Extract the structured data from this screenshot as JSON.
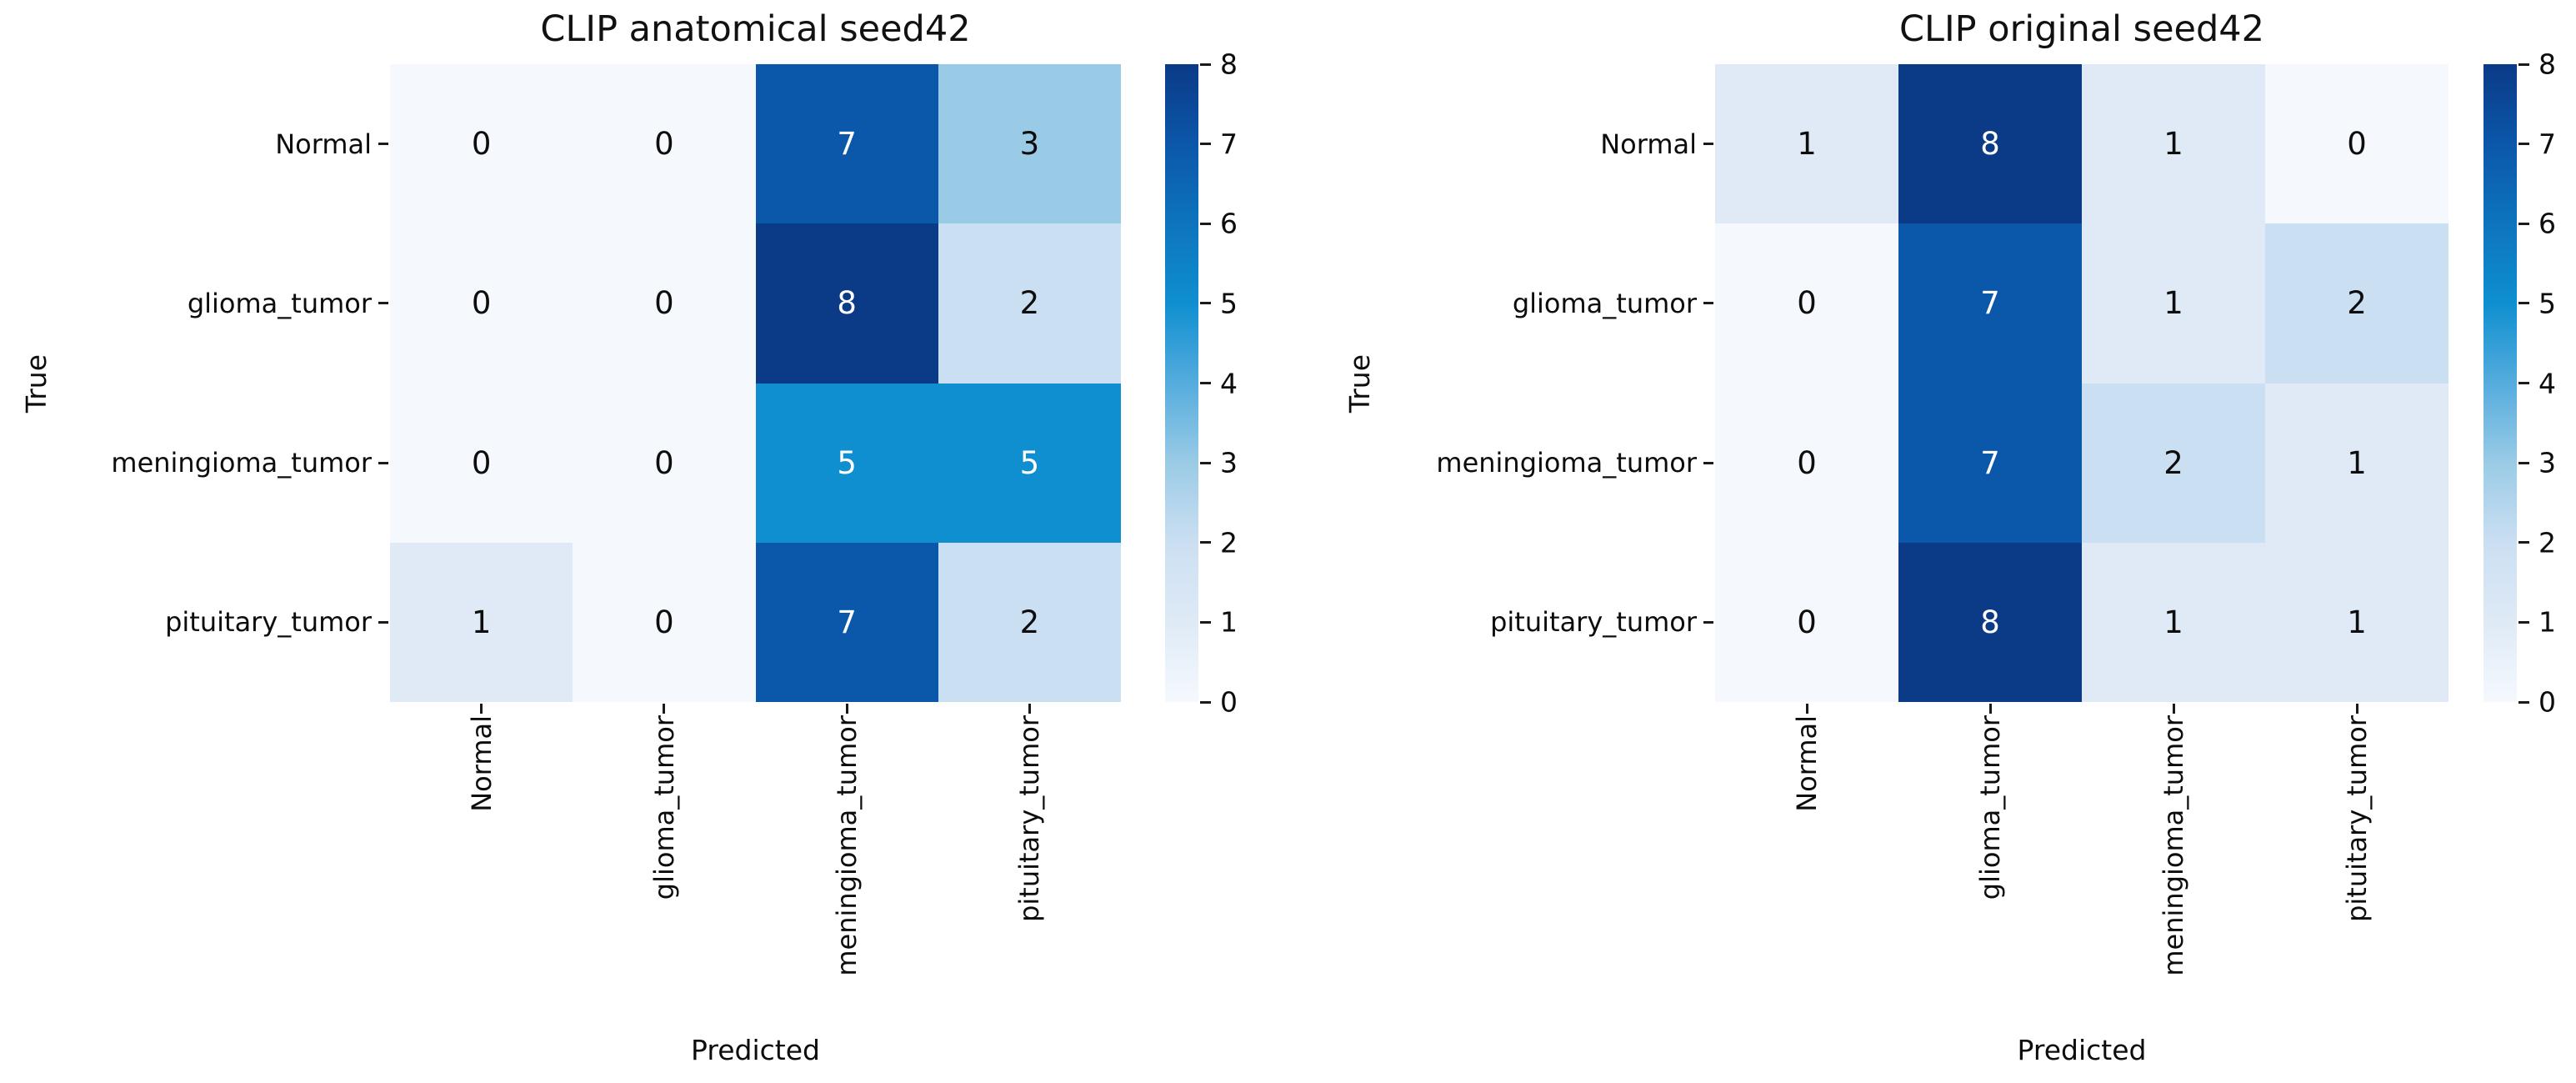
{
  "figure": {
    "background": "#ffffff"
  },
  "chart_data": [
    {
      "type": "heatmap",
      "title": "CLIP anatomical seed42",
      "xlabel": "Predicted",
      "ylabel": "True",
      "x_categories": [
        "Normal",
        "glioma_tumor",
        "meningioma_tumor",
        "pituitary_tumor"
      ],
      "y_categories": [
        "Normal",
        "glioma_tumor",
        "meningioma_tumor",
        "pituitary_tumor"
      ],
      "values": [
        [
          0,
          0,
          7,
          3
        ],
        [
          0,
          0,
          8,
          2
        ],
        [
          0,
          0,
          5,
          5
        ],
        [
          1,
          0,
          7,
          2
        ]
      ],
      "vmin": 0,
      "vmax": 8,
      "colorbar_ticks": [
        8,
        7,
        6,
        5,
        4,
        3,
        2,
        1,
        0
      ],
      "colormap": "Blues",
      "legend_position": "right-colorbar",
      "grid": false
    },
    {
      "type": "heatmap",
      "title": "CLIP original seed42",
      "xlabel": "Predicted",
      "ylabel": "True",
      "x_categories": [
        "Normal",
        "glioma_tumor",
        "meningioma_tumor",
        "pituitary_tumor"
      ],
      "y_categories": [
        "Normal",
        "glioma_tumor",
        "meningioma_tumor",
        "pituitary_tumor"
      ],
      "values": [
        [
          1,
          8,
          1,
          0
        ],
        [
          0,
          7,
          1,
          2
        ],
        [
          0,
          7,
          2,
          1
        ],
        [
          0,
          8,
          1,
          1
        ]
      ],
      "vmin": 0,
      "vmax": 8,
      "colorbar_ticks": [
        8,
        7,
        6,
        5,
        4,
        3,
        2,
        1,
        0
      ],
      "colormap": "Blues",
      "legend_position": "right-colorbar",
      "grid": false
    }
  ],
  "colors": {
    "value_colors": {
      "0": "#f5f9fe",
      "1": "#dfeaf6",
      "2": "#cbdff2",
      "3": "#9acbe6",
      "4": "#55acdd",
      "5": "#0f8fd0",
      "6": "#0d74bd",
      "7": "#0b57a9",
      "8": "#0b3a87"
    },
    "colorbar_stops_top_to_bottom": [
      "#0b3a87",
      "#0b57a9",
      "#0d74bd",
      "#0f8fd0",
      "#55acdd",
      "#9acbe6",
      "#cbdff2",
      "#dfeaf6",
      "#f5f9fe"
    ],
    "annotation_light": "#ffffff",
    "annotation_dark": "#0d0d0d",
    "text": "#0c0c0c"
  }
}
